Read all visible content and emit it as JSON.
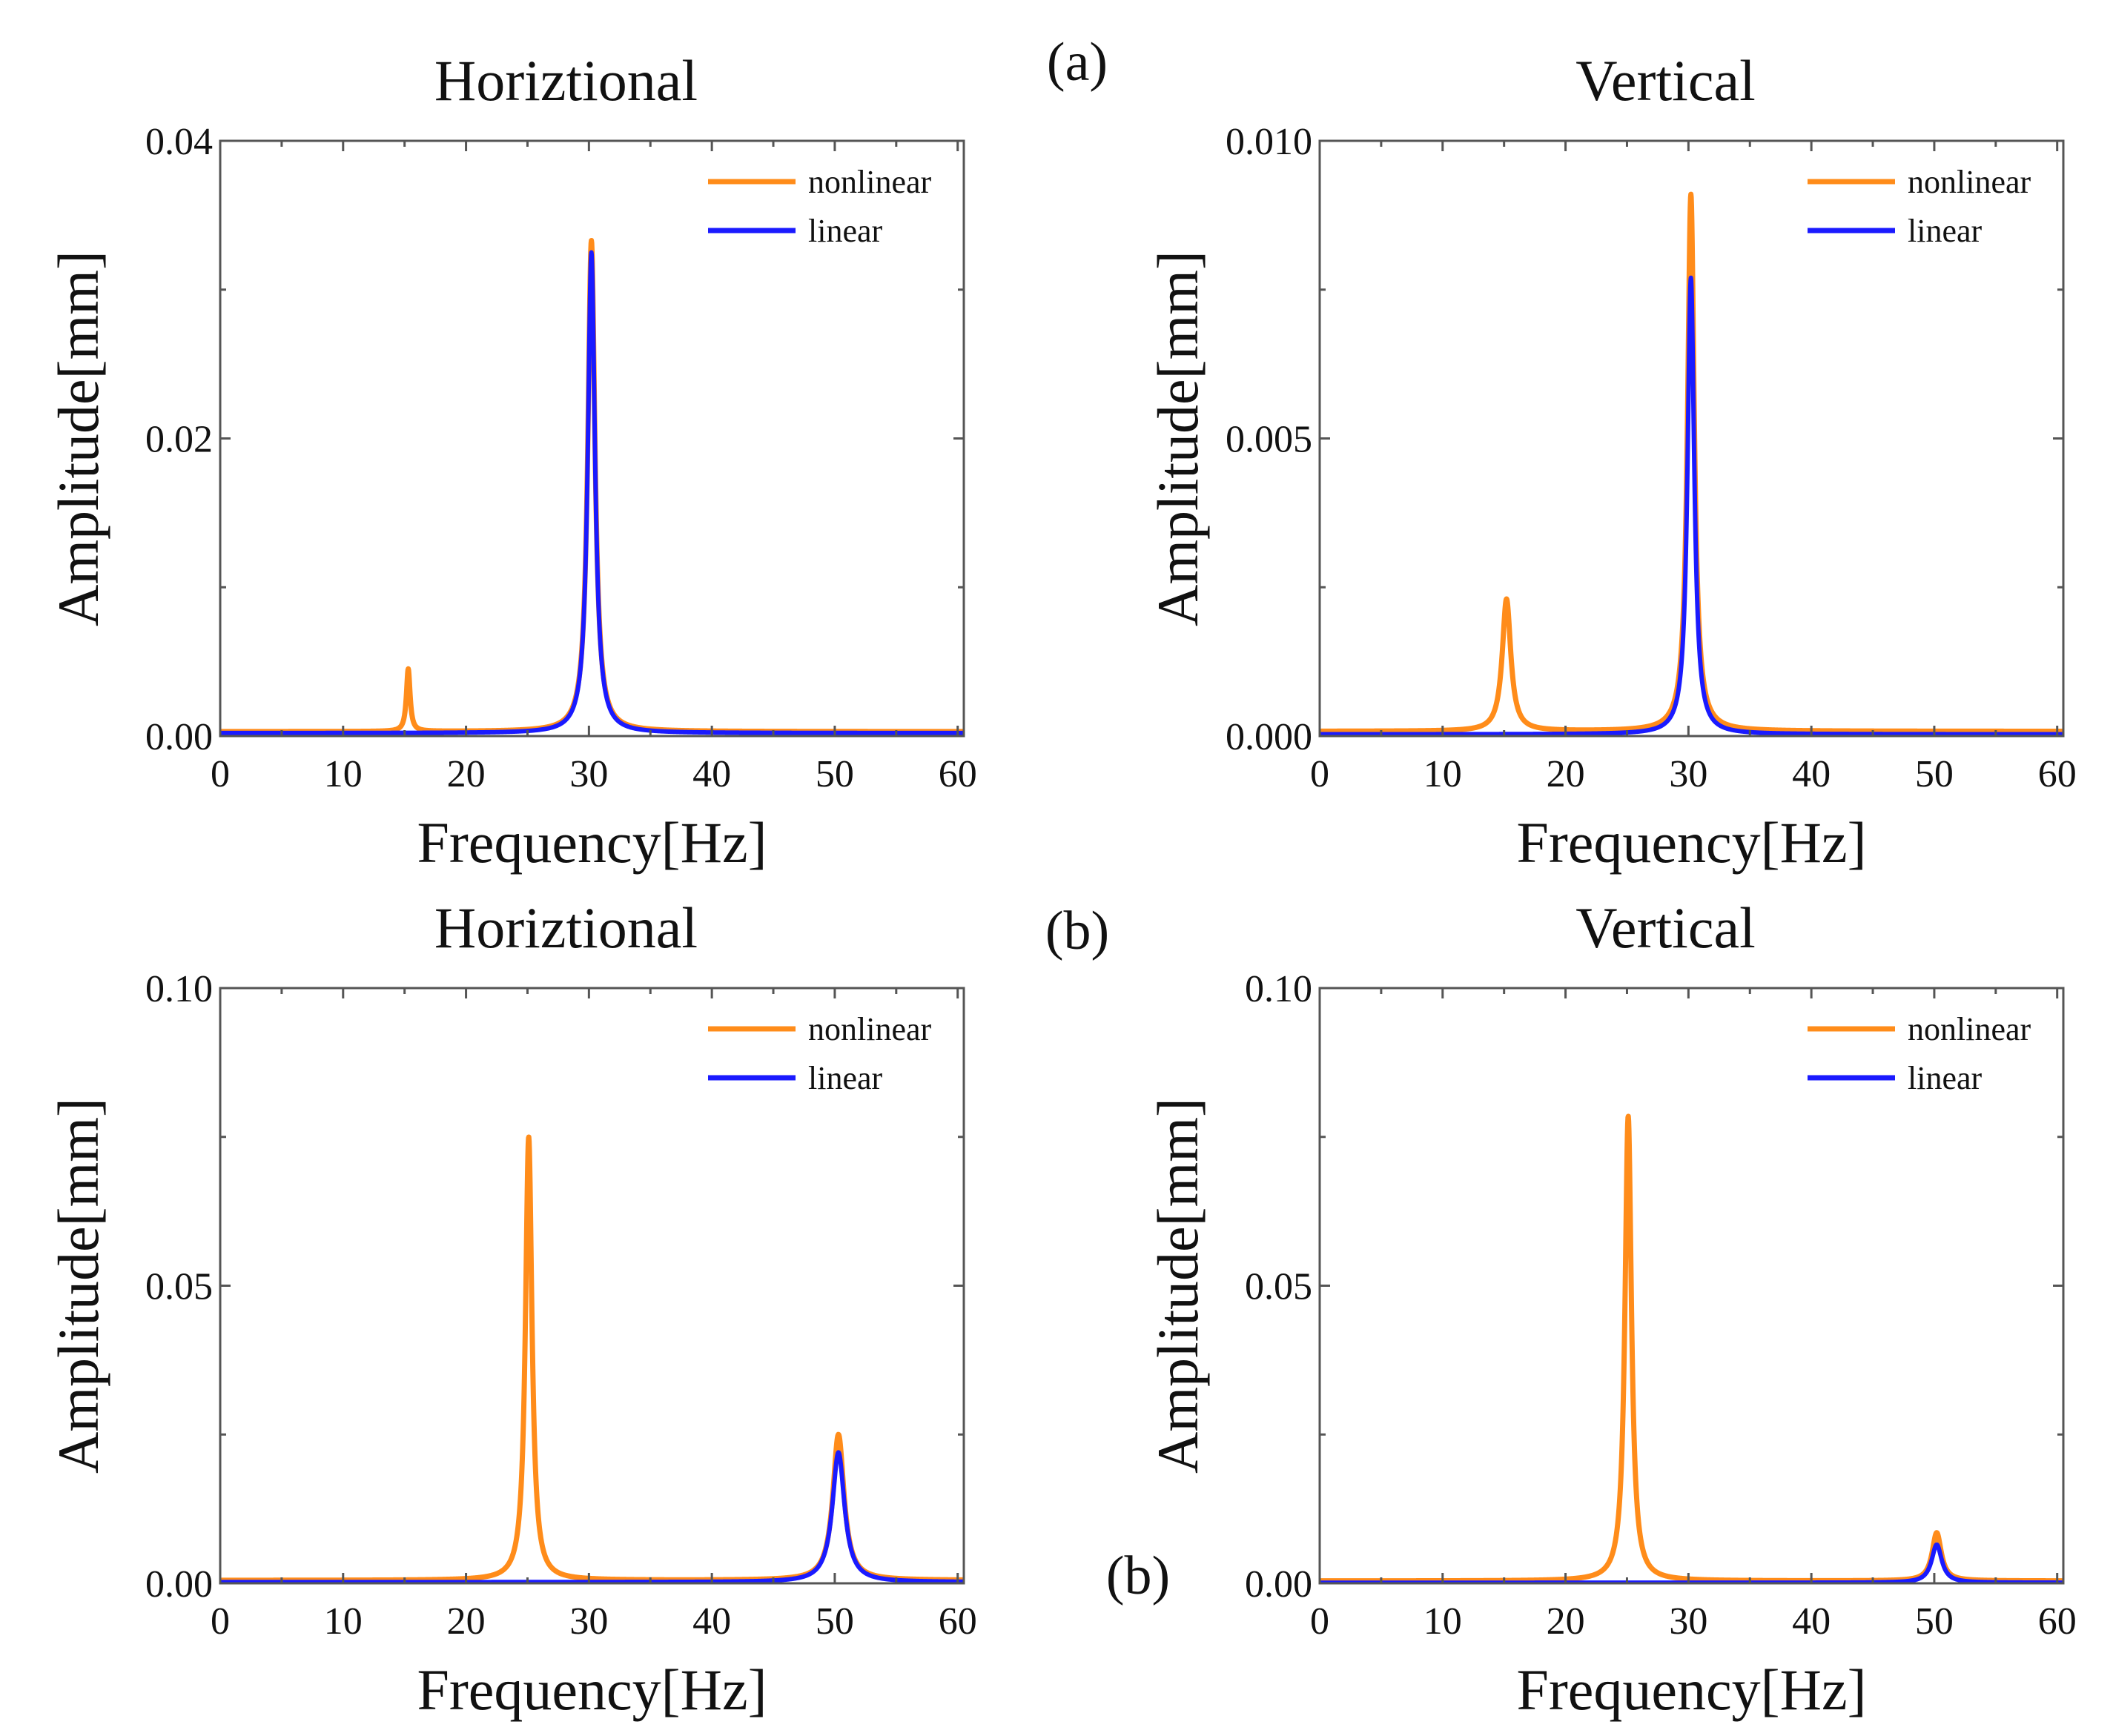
{
  "figure": {
    "panel_labels": [
      "(a)",
      "(b)",
      "(b)"
    ]
  },
  "colors": {
    "nonlinear": "#FF8C1A",
    "linear": "#1A1AFF"
  },
  "chart_data": [
    {
      "type": "line",
      "title": "Horiztional",
      "xlabel": "Frequency[Hz]",
      "ylabel": "Amplitude[mm]",
      "xlim": [
        0,
        60.5
      ],
      "ylim": [
        0,
        0.04
      ],
      "xticks": [
        0,
        10,
        20,
        30,
        40,
        50,
        60
      ],
      "xtick_labels": [
        "0",
        "10",
        "20",
        "30",
        "40",
        "50",
        "60"
      ],
      "yticks": [
        0,
        0.02,
        0.04
      ],
      "ytick_labels": [
        "0.00",
        "0.02",
        "0.04"
      ],
      "legend": {
        "position": "top-right",
        "entries": [
          "nonlinear",
          "linear"
        ]
      },
      "series": [
        {
          "name": "nonlinear",
          "color": "#FF8C1A",
          "baseline": 0.0003,
          "peaks": [
            {
              "f": 15.3,
              "a": 0.0045,
              "w": 0.18
            },
            {
              "f": 30.2,
              "a": 0.0333,
              "w": 0.35
            }
          ]
        },
        {
          "name": "linear",
          "color": "#1A1AFF",
          "baseline": 0.0002,
          "peaks": [
            {
              "f": 30.2,
              "a": 0.0325,
              "w": 0.35
            }
          ]
        }
      ]
    },
    {
      "type": "line",
      "title": "Vertical",
      "xlabel": "Frequency[Hz]",
      "ylabel": "Amplitude[mm]",
      "xlim": [
        0,
        60.5
      ],
      "ylim": [
        0,
        0.01
      ],
      "xticks": [
        0,
        10,
        20,
        30,
        40,
        50,
        60
      ],
      "xtick_labels": [
        "0",
        "10",
        "20",
        "30",
        "40",
        "50",
        "60"
      ],
      "yticks": [
        0,
        0.005,
        0.01
      ],
      "ytick_labels": [
        "0.000",
        "0.005",
        "0.010"
      ],
      "legend": {
        "position": "top-right",
        "entries": [
          "nonlinear",
          "linear"
        ]
      },
      "series": [
        {
          "name": "nonlinear",
          "color": "#FF8C1A",
          "baseline": 8e-05,
          "peaks": [
            {
              "f": 15.2,
              "a": 0.0023,
              "w": 0.42
            },
            {
              "f": 30.2,
              "a": 0.0091,
              "w": 0.33
            }
          ]
        },
        {
          "name": "linear",
          "color": "#1A1AFF",
          "baseline": 3e-05,
          "peaks": [
            {
              "f": 30.2,
              "a": 0.0077,
              "w": 0.33
            }
          ]
        }
      ]
    },
    {
      "type": "line",
      "title": "Horiztional",
      "xlabel": "Frequency[Hz]",
      "ylabel": "Amplitude[mm]",
      "xlim": [
        0,
        60.5
      ],
      "ylim": [
        0,
        0.1
      ],
      "xticks": [
        0,
        10,
        20,
        30,
        40,
        50,
        60
      ],
      "xtick_labels": [
        "0",
        "10",
        "20",
        "30",
        "40",
        "50",
        "60"
      ],
      "yticks": [
        0,
        0.05,
        0.1
      ],
      "ytick_labels": [
        "0.00",
        "0.05",
        "0.10"
      ],
      "legend": {
        "position": "top-right",
        "entries": [
          "nonlinear",
          "linear"
        ]
      },
      "series": [
        {
          "name": "nonlinear",
          "color": "#FF8C1A",
          "baseline": 0.0005,
          "peaks": [
            {
              "f": 25.1,
              "a": 0.075,
              "w": 0.32
            },
            {
              "f": 50.3,
              "a": 0.025,
              "w": 0.55
            }
          ]
        },
        {
          "name": "linear",
          "color": "#1A1AFF",
          "baseline": 0.0002,
          "peaks": [
            {
              "f": 50.3,
              "a": 0.022,
              "w": 0.6
            }
          ]
        }
      ]
    },
    {
      "type": "line",
      "title": "Vertical",
      "xlabel": "Frequency[Hz]",
      "ylabel": "Amplitude[mm]",
      "xlim": [
        0,
        60.5
      ],
      "ylim": [
        0,
        0.1
      ],
      "xticks": [
        0,
        10,
        20,
        30,
        40,
        50,
        60
      ],
      "xtick_labels": [
        "0",
        "10",
        "20",
        "30",
        "40",
        "50",
        "60"
      ],
      "yticks": [
        0,
        0.05,
        0.1
      ],
      "ytick_labels": [
        "0.00",
        "0.05",
        "0.10"
      ],
      "legend": {
        "position": "top-right",
        "entries": [
          "nonlinear",
          "linear"
        ]
      },
      "series": [
        {
          "name": "nonlinear",
          "color": "#FF8C1A",
          "baseline": 0.0004,
          "peaks": [
            {
              "f": 25.1,
              "a": 0.0785,
              "w": 0.32
            },
            {
              "f": 50.2,
              "a": 0.0085,
              "w": 0.45
            }
          ]
        },
        {
          "name": "linear",
          "color": "#1A1AFF",
          "baseline": 0.0001,
          "peaks": [
            {
              "f": 50.2,
              "a": 0.0065,
              "w": 0.5
            }
          ]
        }
      ]
    }
  ]
}
